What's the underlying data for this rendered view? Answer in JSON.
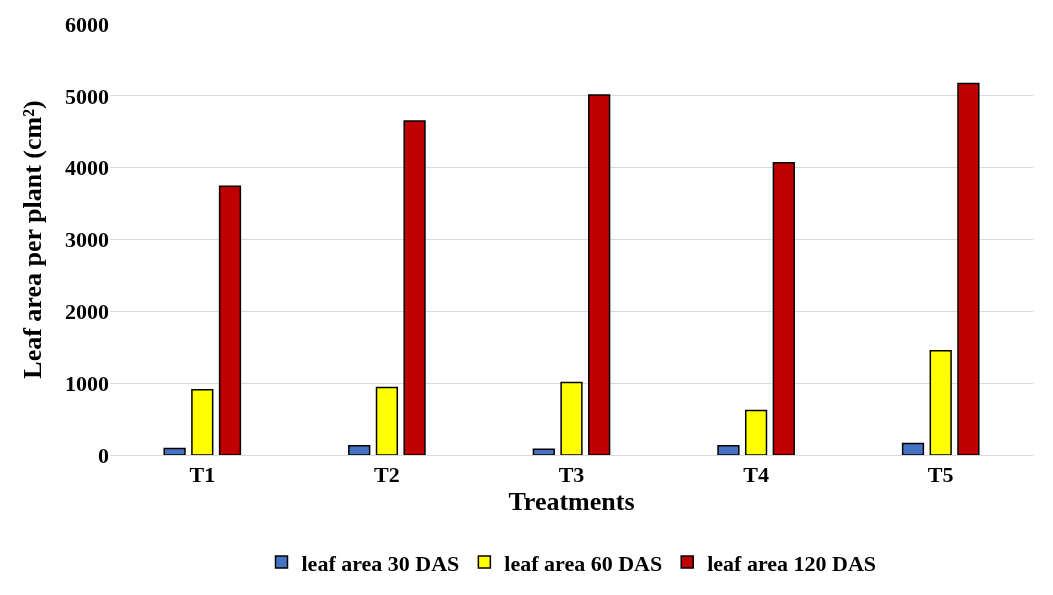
{
  "chart_data": {
    "type": "bar",
    "xlabel": "Treatments",
    "ylabel": "Leaf area per plant (cm²)",
    "categories": [
      "T1",
      "T2",
      "T3",
      "T4",
      "T5"
    ],
    "series": [
      {
        "name": "leaf area 30 DAS",
        "color": "#4472c4",
        "values": [
          90,
          130,
          80,
          130,
          160
        ]
      },
      {
        "name": "leaf area 60 DAS",
        "color": "#ffff00",
        "values": [
          910,
          940,
          1010,
          620,
          1450
        ]
      },
      {
        "name": "leaf area 120 DAS",
        "color": "#c00000",
        "values": [
          3740,
          4650,
          5010,
          4070,
          5170
        ]
      }
    ],
    "ylim": [
      0,
      6000
    ],
    "yticks": [
      0,
      1000,
      2000,
      3000,
      4000,
      5000,
      6000
    ],
    "grid": "y",
    "legend": "bottom"
  }
}
